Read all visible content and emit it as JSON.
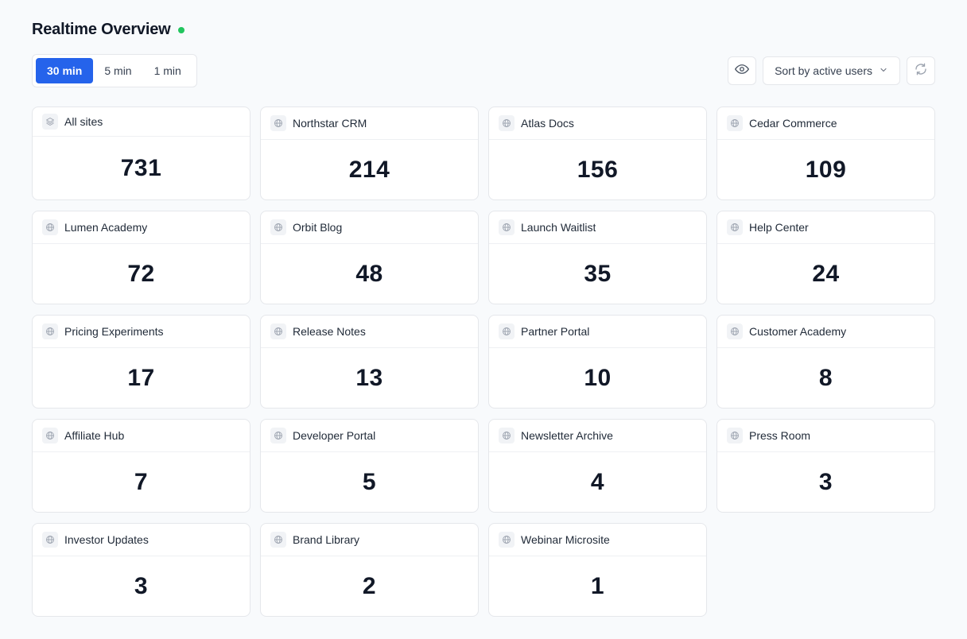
{
  "header": {
    "title": "Realtime Overview",
    "live_color": "#22c55e"
  },
  "ranges": [
    {
      "label": "30 min",
      "active": true
    },
    {
      "label": "5 min",
      "active": false
    },
    {
      "label": "1 min",
      "active": false
    }
  ],
  "toolbar": {
    "visibility_icon": "eye-icon",
    "sort_label": "Sort by active users",
    "sort_icon": "chevron-down-icon",
    "refresh_icon": "refresh-icon"
  },
  "accent": "#2563eb",
  "sites": [
    {
      "name": "All sites",
      "value": "731",
      "icon": "layers-icon"
    },
    {
      "name": "Northstar CRM",
      "value": "214",
      "icon": "globe-icon"
    },
    {
      "name": "Atlas Docs",
      "value": "156",
      "icon": "globe-icon"
    },
    {
      "name": "Cedar Commerce",
      "value": "109",
      "icon": "globe-icon"
    },
    {
      "name": "Lumen Academy",
      "value": "72",
      "icon": "globe-icon"
    },
    {
      "name": "Orbit Blog",
      "value": "48",
      "icon": "globe-icon"
    },
    {
      "name": "Launch Waitlist",
      "value": "35",
      "icon": "globe-icon"
    },
    {
      "name": "Help Center",
      "value": "24",
      "icon": "globe-icon"
    },
    {
      "name": "Pricing Experiments",
      "value": "17",
      "icon": "globe-icon"
    },
    {
      "name": "Release Notes",
      "value": "13",
      "icon": "globe-icon"
    },
    {
      "name": "Partner Portal",
      "value": "10",
      "icon": "globe-icon"
    },
    {
      "name": "Customer Academy",
      "value": "8",
      "icon": "globe-icon"
    },
    {
      "name": "Affiliate Hub",
      "value": "7",
      "icon": "globe-icon"
    },
    {
      "name": "Developer Portal",
      "value": "5",
      "icon": "globe-icon"
    },
    {
      "name": "Newsletter Archive",
      "value": "4",
      "icon": "globe-icon"
    },
    {
      "name": "Press Room",
      "value": "3",
      "icon": "globe-icon"
    },
    {
      "name": "Investor Updates",
      "value": "3",
      "icon": "globe-icon"
    },
    {
      "name": "Brand Library",
      "value": "2",
      "icon": "globe-icon"
    },
    {
      "name": "Webinar Microsite",
      "value": "1",
      "icon": "globe-icon"
    }
  ]
}
